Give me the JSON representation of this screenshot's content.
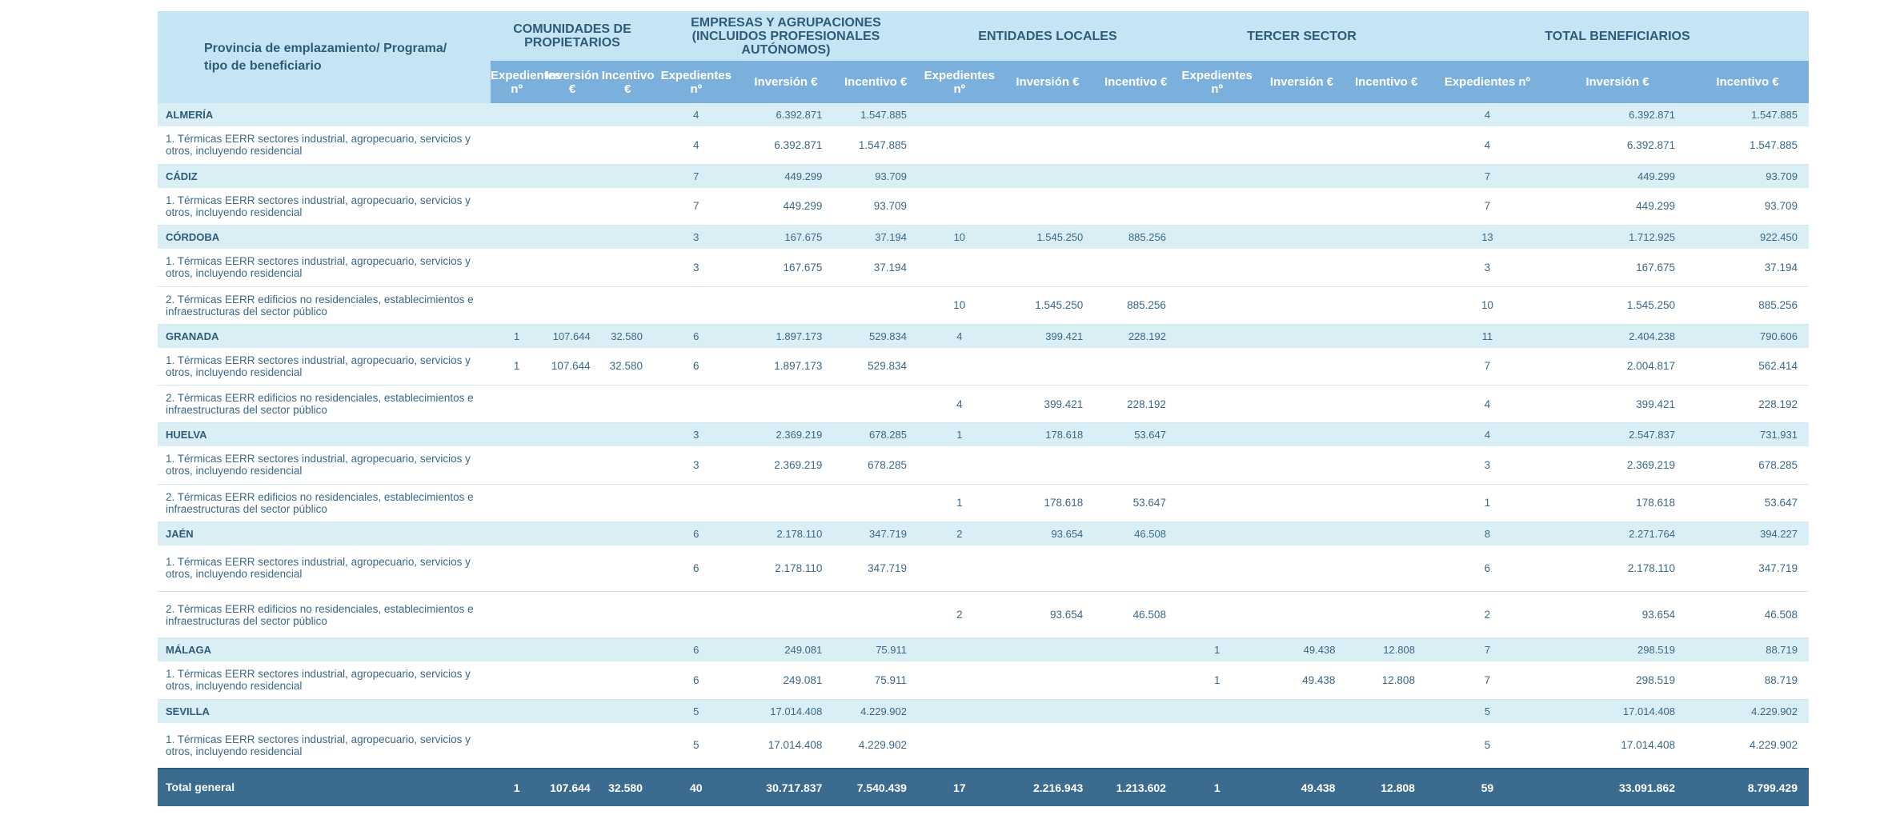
{
  "header": {
    "province_label": "Provincia de emplazamiento/ Programa/ tipo de beneficiario",
    "groups": [
      "COMUNIDADES DE PROPIETARIOS",
      "EMPRESAS Y AGRUPACIONES (INCLUIDOS PROFESIONALES AUTÓNOMOS)",
      "ENTIDADES LOCALES",
      "TERCER SECTOR",
      "TOTAL BENEFICIARIOS"
    ],
    "subcols": [
      "Expedientes nº",
      "Inversión €",
      "Incentivo €"
    ]
  },
  "rows": [
    {
      "type": "prov",
      "label": "ALMERÍA",
      "cells": [
        "",
        "",
        "",
        "4",
        "6.392.871",
        "1.547.885",
        "",
        "",
        "",
        "",
        "",
        "",
        "4",
        "6.392.871",
        "1.547.885"
      ]
    },
    {
      "type": "prog",
      "label": "1. Térmicas EERR sectores industrial, agropecuario, servicios y otros, incluyendo residencial",
      "cells": [
        "",
        "",
        "",
        "4",
        "6.392.871",
        "1.547.885",
        "",
        "",
        "",
        "",
        "",
        "",
        "4",
        "6.392.871",
        "1.547.885"
      ]
    },
    {
      "type": "prov",
      "label": "CÁDIZ",
      "cells": [
        "",
        "",
        "",
        "7",
        "449.299",
        "93.709",
        "",
        "",
        "",
        "",
        "",
        "",
        "7",
        "449.299",
        "93.709"
      ]
    },
    {
      "type": "prog",
      "label": "1. Térmicas EERR sectores industrial, agropecuario, servicios y otros, incluyendo residencial",
      "cells": [
        "",
        "",
        "",
        "7",
        "449.299",
        "93.709",
        "",
        "",
        "",
        "",
        "",
        "",
        "7",
        "449.299",
        "93.709"
      ]
    },
    {
      "type": "prov",
      "label": "CÓRDOBA",
      "cells": [
        "",
        "",
        "",
        "3",
        "167.675",
        "37.194",
        "10",
        "1.545.250",
        "885.256",
        "",
        "",
        "",
        "13",
        "1.712.925",
        "922.450"
      ]
    },
    {
      "type": "prog",
      "label": "1. Térmicas EERR sectores industrial, agropecuario, servicios y otros, incluyendo residencial",
      "cells": [
        "",
        "",
        "",
        "3",
        "167.675",
        "37.194",
        "",
        "",
        "",
        "",
        "",
        "",
        "3",
        "167.675",
        "37.194"
      ]
    },
    {
      "type": "prog",
      "label": "2. Térmicas EERR edificios no residenciales, establecimientos e infraestructuras del sector público",
      "cells": [
        "",
        "",
        "",
        "",
        "",
        "",
        "10",
        "1.545.250",
        "885.256",
        "",
        "",
        "",
        "10",
        "1.545.250",
        "885.256"
      ]
    },
    {
      "type": "prov",
      "label": "GRANADA",
      "cells": [
        "1",
        "107.644",
        "32.580",
        "6",
        "1.897.173",
        "529.834",
        "4",
        "399.421",
        "228.192",
        "",
        "",
        "",
        "11",
        "2.404.238",
        "790.606"
      ]
    },
    {
      "type": "prog",
      "label": "1. Térmicas EERR sectores industrial, agropecuario, servicios y otros, incluyendo residencial",
      "cells": [
        "1",
        "107.644",
        "32.580",
        "6",
        "1.897.173",
        "529.834",
        "",
        "",
        "",
        "",
        "",
        "",
        "7",
        "2.004.817",
        "562.414"
      ]
    },
    {
      "type": "prog",
      "label": "2. Térmicas EERR edificios no residenciales, establecimientos e infraestructuras del sector público",
      "cells": [
        "",
        "",
        "",
        "",
        "",
        "",
        "4",
        "399.421",
        "228.192",
        "",
        "",
        "",
        "4",
        "399.421",
        "228.192"
      ]
    },
    {
      "type": "prov",
      "label": "HUELVA",
      "cells": [
        "",
        "",
        "",
        "3",
        "2.369.219",
        "678.285",
        "1",
        "178.618",
        "53.647",
        "",
        "",
        "",
        "4",
        "2.547.837",
        "731.931"
      ]
    },
    {
      "type": "prog",
      "label": "1. Térmicas EERR sectores industrial, agropecuario, servicios y otros, incluyendo residencial",
      "cells": [
        "",
        "",
        "",
        "3",
        "2.369.219",
        "678.285",
        "",
        "",
        "",
        "",
        "",
        "",
        "3",
        "2.369.219",
        "678.285"
      ]
    },
    {
      "type": "prog",
      "label": "2. Térmicas EERR edificios no residenciales, establecimientos e infraestructuras del sector público",
      "cells": [
        "",
        "",
        "",
        "",
        "",
        "",
        "1",
        "178.618",
        "53.647",
        "",
        "",
        "",
        "1",
        "178.618",
        "53.647"
      ]
    },
    {
      "type": "prov",
      "label": "JAÉN",
      "cells": [
        "",
        "",
        "",
        "6",
        "2.178.110",
        "347.719",
        "2",
        "93.654",
        "46.508",
        "",
        "",
        "",
        "8",
        "2.271.764",
        "394.227"
      ]
    },
    {
      "type": "prog",
      "label": "1. Térmicas EERR sectores industrial, agropecuario, servicios y otros, incluyendo residencial",
      "cells": [
        "",
        "",
        "",
        "6",
        "2.178.110",
        "347.719",
        "",
        "",
        "",
        "",
        "",
        "",
        "6",
        "2.178.110",
        "347.719"
      ]
    },
    {
      "type": "prog",
      "label": "2. Térmicas EERR edificios no residenciales, establecimientos e infraestructuras del sector público",
      "cells": [
        "",
        "",
        "",
        "",
        "",
        "",
        "2",
        "93.654",
        "46.508",
        "",
        "",
        "",
        "2",
        "93.654",
        "46.508"
      ]
    },
    {
      "type": "prov",
      "label": "MÁLAGA",
      "cells": [
        "",
        "",
        "",
        "6",
        "249.081",
        "75.911",
        "",
        "",
        "",
        "1",
        "49.438",
        "12.808",
        "7",
        "298.519",
        "88.719"
      ]
    },
    {
      "type": "prog",
      "label": "1. Térmicas EERR sectores industrial, agropecuario, servicios y otros, incluyendo residencial",
      "cells": [
        "",
        "",
        "",
        "6",
        "249.081",
        "75.911",
        "",
        "",
        "",
        "1",
        "49.438",
        "12.808",
        "7",
        "298.519",
        "88.719"
      ]
    },
    {
      "type": "prov",
      "label": "SEVILLA",
      "cells": [
        "",
        "",
        "",
        "5",
        "17.014.408",
        "4.229.902",
        "",
        "",
        "",
        "",
        "",
        "",
        "5",
        "17.014.408",
        "4.229.902"
      ]
    },
    {
      "type": "prog",
      "label": "1. Térmicas EERR sectores industrial, agropecuario, servicios y otros, incluyendo residencial",
      "cells": [
        "",
        "",
        "",
        "5",
        "17.014.408",
        "4.229.902",
        "",
        "",
        "",
        "",
        "",
        "",
        "5",
        "17.014.408",
        "4.229.902"
      ]
    }
  ],
  "total": {
    "label": "Total general",
    "cells": [
      "1",
      "107.644",
      "32.580",
      "40",
      "30.717.837",
      "7.540.439",
      "17",
      "2.216.943",
      "1.213.602",
      "1",
      "49.438",
      "12.808",
      "59",
      "33.091.862",
      "8.799.429"
    ]
  }
}
